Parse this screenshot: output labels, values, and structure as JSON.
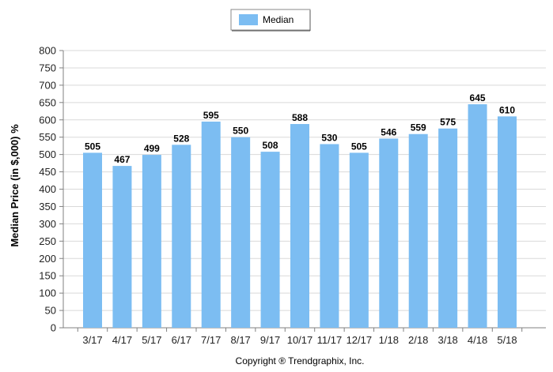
{
  "chart_data": {
    "type": "bar",
    "categories": [
      "3/17",
      "4/17",
      "5/17",
      "6/17",
      "7/17",
      "8/17",
      "9/17",
      "10/17",
      "11/17",
      "12/17",
      "1/18",
      "2/18",
      "3/18",
      "4/18",
      "5/18"
    ],
    "series": [
      {
        "name": "Median",
        "values": [
          505,
          467,
          499,
          528,
          595,
          550,
          508,
          588,
          530,
          505,
          546,
          559,
          575,
          645,
          610
        ],
        "color": "#7cbdf2"
      }
    ],
    "xlabel": "",
    "ylabel": "Median Price (in $,000) %",
    "ylim": [
      0,
      800
    ],
    "yticks": [
      0,
      50,
      100,
      150,
      200,
      250,
      300,
      350,
      400,
      450,
      500,
      550,
      600,
      650,
      700,
      750,
      800
    ],
    "grid": true,
    "legend_position": "top-center",
    "data_labels": true
  },
  "footer": {
    "copyright": "Copyright ® Trendgraphix, Inc."
  },
  "colors": {
    "bar": "#7cbdf2",
    "grid": "#d9d9d9",
    "axis": "#808080"
  }
}
